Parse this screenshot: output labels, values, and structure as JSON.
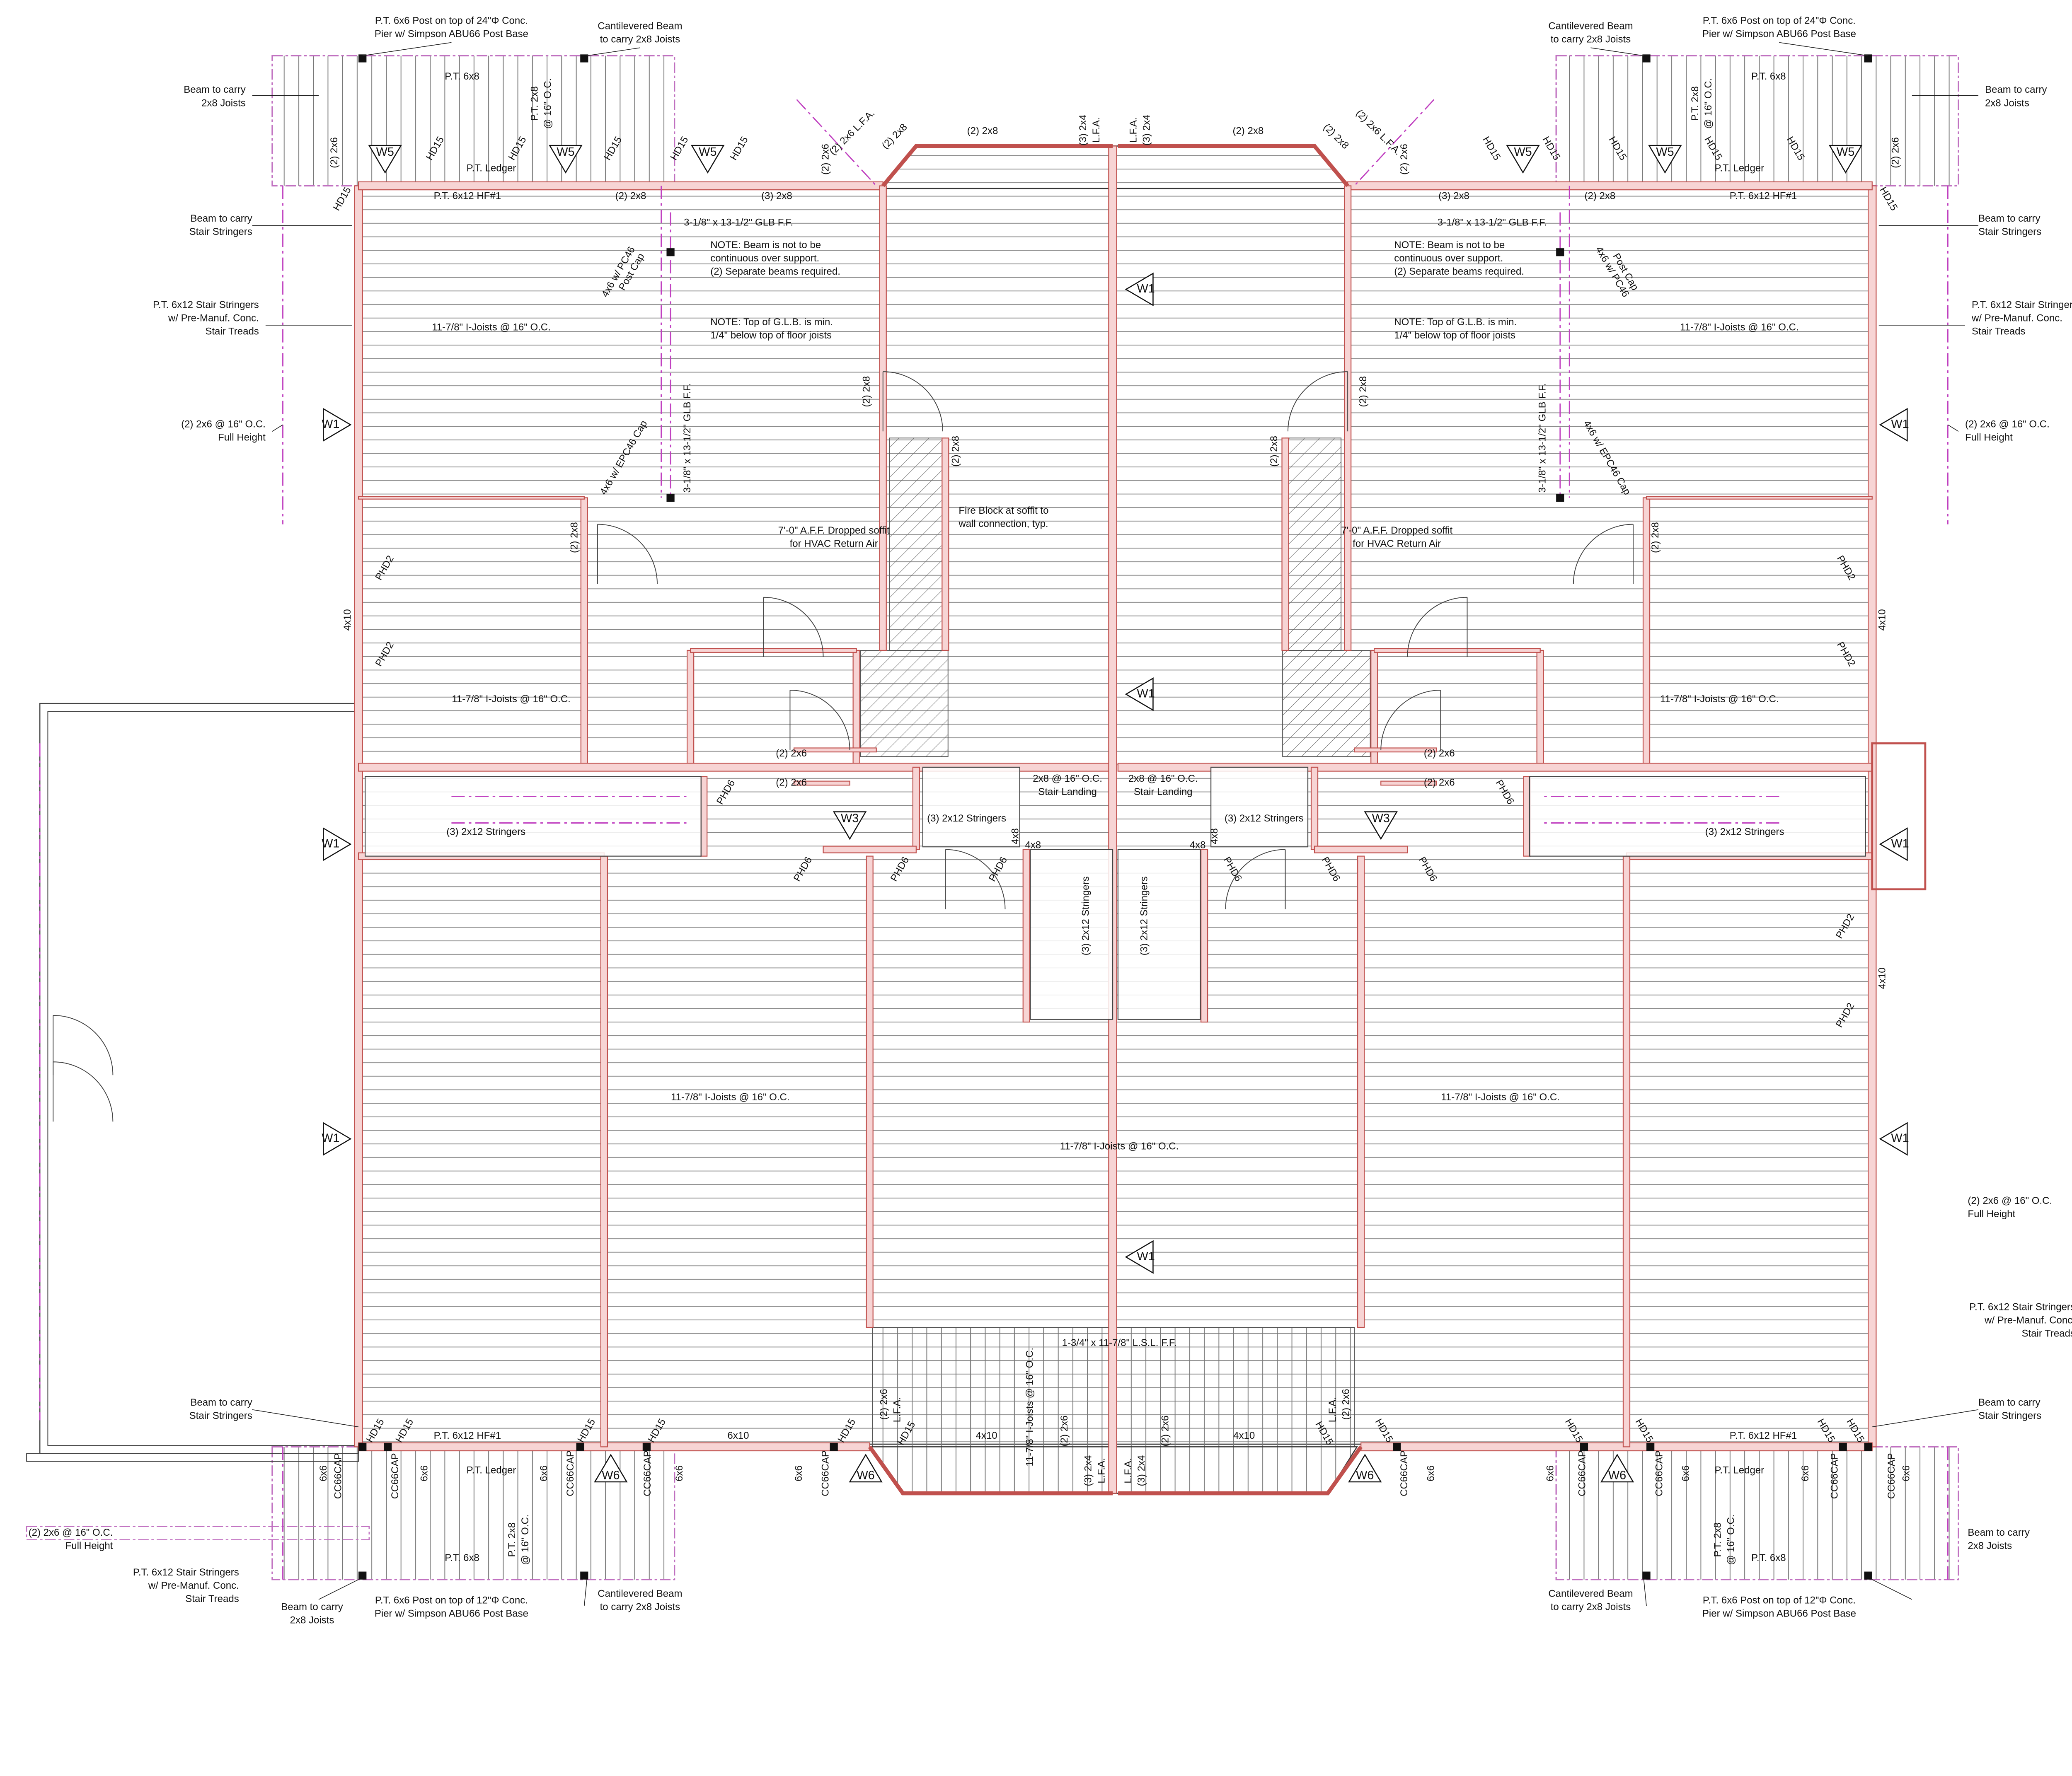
{
  "callouts": {
    "post_24": [
      "P.T. 6x6 Post on top of 24\"Φ Conc.",
      "Pier w/ Simpson ABU66 Post Base"
    ],
    "post_12": [
      "P.T. 6x6 Post on top of 12\"Φ Conc.",
      "Pier w/ Simpson ABU66 Post Base"
    ],
    "cant_beam": [
      "Cantilevered Beam",
      "to carry 2x8 Joists"
    ],
    "beam_joists": [
      "Beam to carry",
      "2x8 Joists"
    ],
    "beam_stringers": [
      "Beam to carry",
      "Stair Stringers"
    ],
    "stair_stringers": [
      "P.T. 6x12 Stair Stringers",
      "w/ Pre-Manuf. Conc.",
      "Stair Treads"
    ],
    "studs": [
      "(2) 2x6 @ 16\" O.C.",
      "Full Height"
    ],
    "glb": "3-1/8\" x 13-1/2\" GLB F.F.",
    "note_beam": [
      "NOTE: Beam is not to be",
      "continuous over support.",
      "(2) Separate beams required."
    ],
    "note_glb": [
      "NOTE: Top of G.L.B. is min.",
      "1/4\" below top of floor joists"
    ],
    "post_cap": [
      "4x6 w/ PC46",
      "Post Cap"
    ],
    "epc": "4x6 w/ EPC46 Cap",
    "soffit": [
      "7'-0\" A.F.F. Dropped soffit",
      "for HVAC Return Air"
    ],
    "fire_block": [
      "Fire Block at soffit to",
      "wall connection, typ."
    ],
    "landing": [
      "2x8 @ 16\" O.C.",
      "Stair Landing"
    ],
    "lsl": "1-3/4\" x 11-7/8\" L.S.L. F.F."
  },
  "members": {
    "joists": "11-7/8\" I-Joists @ 16\" O.C.",
    "pt_6x8": "P.T. 6x8",
    "pt_2x8": [
      "P.T. 2x8",
      "@ 16\" O.C."
    ],
    "ledger": "P.T. Ledger",
    "hf": "P.T. 6x12 HF#1",
    "d2x6": "(2) 2x6",
    "d2x6_lfa": "(2) 2x6 L.F.A.",
    "d2x8": "(2) 2x8",
    "t2x8": "(3) 2x8",
    "t2x4": "(3) 2x4",
    "lfa": "L.F.A.",
    "stringers": "(3) 2x12 Stringers",
    "x4x8": "4x8",
    "x4x10": "4x10",
    "x6x10": "6x10",
    "x6x6": "6x6",
    "cc66": "CC66CAP",
    "hd15": "HD15",
    "phd2": "PHD2",
    "phd6": "PHD6"
  },
  "markers": {
    "w1": "W1",
    "w3": "W3",
    "w5": "W5",
    "w6": "W6"
  }
}
